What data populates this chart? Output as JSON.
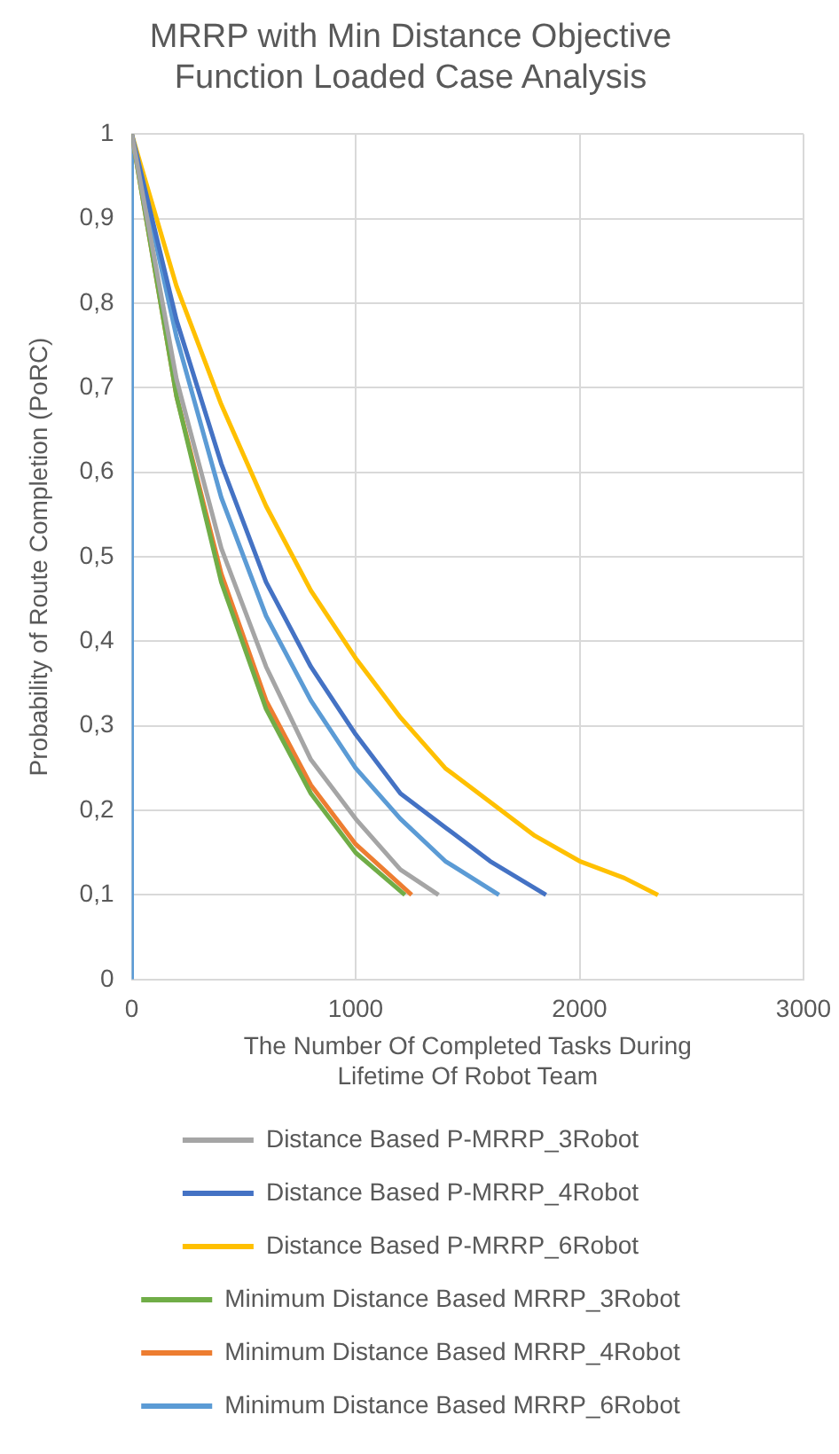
{
  "chart_data": {
    "type": "line",
    "title": "MRRP with Min Distance Objective Function Loaded Case Analysis",
    "xlabel": "The Number Of Completed Tasks During Lifetime Of Robot Team",
    "ylabel": "Probability of Route Completion (PoRC)",
    "xlim": [
      0,
      3000
    ],
    "xticks": [
      0,
      1000,
      2000,
      3000
    ],
    "ylim": [
      0,
      1
    ],
    "yticks": [
      {
        "value": 0,
        "label": "0"
      },
      {
        "value": 0.1,
        "label": "0,1"
      },
      {
        "value": 0.2,
        "label": "0,2"
      },
      {
        "value": 0.3,
        "label": "0,3"
      },
      {
        "value": 0.4,
        "label": "0,4"
      },
      {
        "value": 0.5,
        "label": "0,5"
      },
      {
        "value": 0.6,
        "label": "0,6"
      },
      {
        "value": 0.7,
        "label": "0,7"
      },
      {
        "value": 0.8,
        "label": "0,8"
      },
      {
        "value": 0.9,
        "label": "0,9"
      },
      {
        "value": 1,
        "label": "1"
      }
    ],
    "grid": true,
    "legend": "bottom",
    "marker": "none",
    "series": [
      {
        "name": "Distance Based P-MRRP_3Robot",
        "color": "#a5a5a5",
        "x": [
          0,
          200,
          400,
          600,
          800,
          1000,
          1200,
          1370
        ],
        "values": [
          1,
          0.71,
          0.51,
          0.37,
          0.26,
          0.19,
          0.13,
          0.1
        ]
      },
      {
        "name": "Distance Based P-MRRP_4Robot",
        "color": "#4472c4",
        "x": [
          0,
          200,
          400,
          600,
          800,
          1000,
          1200,
          1400,
          1600,
          1850
        ],
        "values": [
          1,
          0.78,
          0.61,
          0.47,
          0.37,
          0.29,
          0.22,
          0.18,
          0.14,
          0.1
        ]
      },
      {
        "name": "Distance Based P-MRRP_6Robot",
        "color": "#ffc000",
        "x": [
          0,
          200,
          400,
          600,
          800,
          1000,
          1200,
          1400,
          1600,
          1800,
          2000,
          2200,
          2350
        ],
        "values": [
          1,
          0.82,
          0.68,
          0.56,
          0.46,
          0.38,
          0.31,
          0.25,
          0.21,
          0.17,
          0.14,
          0.12,
          0.1
        ]
      },
      {
        "name": "Minimum Distance Based MRRP_3Robot",
        "color": "#70ad47",
        "x": [
          0,
          200,
          400,
          600,
          800,
          1000,
          1220
        ],
        "values": [
          1,
          0.69,
          0.47,
          0.32,
          0.22,
          0.15,
          0.1
        ]
      },
      {
        "name": "Minimum Distance Based MRRP_4Robot",
        "color": "#ed7d31",
        "x": [
          0,
          200,
          400,
          600,
          800,
          1000,
          1250
        ],
        "values": [
          1,
          0.69,
          0.48,
          0.33,
          0.23,
          0.16,
          0.1
        ]
      },
      {
        "name": "Minimum Distance Based MRRP_6Robot",
        "color": "#5b9bd5",
        "x": [
          0,
          0,
          200,
          400,
          600,
          800,
          1000,
          1200,
          1400,
          1640
        ],
        "values": [
          0,
          1,
          0.76,
          0.57,
          0.43,
          0.33,
          0.25,
          0.19,
          0.14,
          0.1
        ]
      }
    ]
  }
}
